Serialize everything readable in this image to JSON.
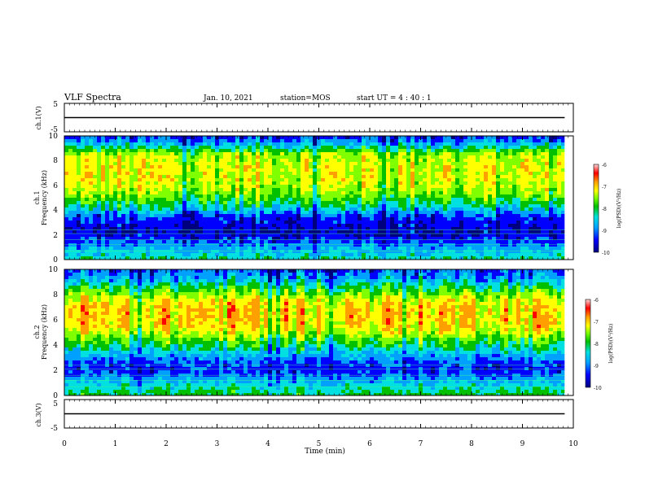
{
  "header": {
    "title": "VLF Spectra",
    "date": "Jan. 10, 2021",
    "station": "station=MOS",
    "start": "start  UT =  4 : 40 : 1"
  },
  "colorbar": {
    "ticks": [
      "-6",
      "-7",
      "-8",
      "-9",
      "-10"
    ],
    "label": "log(PSD)(V²/Hz)"
  },
  "chart_data": [
    {
      "type": "line",
      "ylabel": "ch.1(V)",
      "ylim": [
        -5,
        5
      ],
      "yticks": [
        "5",
        "-5"
      ],
      "x": [
        0,
        9.83
      ],
      "values": [
        0,
        0
      ],
      "xlim": [
        0,
        10
      ]
    },
    {
      "type": "heatmap",
      "ylabel": "ch.1\nFrequency (kHz)",
      "ylim": [
        0,
        10
      ],
      "xlim": [
        0,
        10
      ],
      "yticks": [
        "0",
        "2",
        "4",
        "6",
        "8",
        "10"
      ],
      "data_end_min": 9.83,
      "color_scale": [
        "#00007f",
        "#0000ff",
        "#00a0ff",
        "#00e0e0",
        "#00c000",
        "#80ff00",
        "#ffff00",
        "#ffa000",
        "#ff0000"
      ],
      "zlim": [
        -10,
        -6
      ],
      "profile": {
        "freq_khz": [
          0,
          0.5,
          1.0,
          1.5,
          2.0,
          2.5,
          3.0,
          3.5,
          4.0,
          4.5,
          5.0,
          5.5,
          6.0,
          6.5,
          7.0,
          7.5,
          8.0,
          8.5,
          9.0,
          9.5,
          10.0
        ],
        "log_psd": [
          -8.2,
          -8.6,
          -8.8,
          -9.2,
          -9.5,
          -9.5,
          -9.4,
          -9.2,
          -8.6,
          -8.2,
          -7.8,
          -7.5,
          -7.3,
          -7.2,
          -7.2,
          -7.2,
          -7.3,
          -7.4,
          -8.2,
          -8.9,
          -9.3
        ]
      }
    },
    {
      "type": "heatmap",
      "ylabel": "ch.2\nFrequency (kHz)",
      "ylim": [
        0,
        10
      ],
      "xlim": [
        0,
        10
      ],
      "yticks": [
        "0",
        "2",
        "4",
        "6",
        "8",
        "10"
      ],
      "data_end_min": 9.83,
      "color_scale": [
        "#00007f",
        "#0000ff",
        "#00a0ff",
        "#00e0e0",
        "#00c000",
        "#80ff00",
        "#ffff00",
        "#ffa000",
        "#ff0000"
      ],
      "zlim": [
        -10,
        -6
      ],
      "profile": {
        "freq_khz": [
          0,
          0.5,
          1.0,
          1.5,
          2.0,
          2.5,
          3.0,
          3.5,
          4.0,
          4.5,
          5.0,
          5.5,
          6.0,
          6.5,
          7.0,
          7.5,
          8.0,
          8.5,
          9.0,
          9.5,
          10.0
        ],
        "log_psd": [
          -8.0,
          -8.3,
          -8.6,
          -9.0,
          -9.3,
          -9.2,
          -8.9,
          -8.5,
          -8.1,
          -7.7,
          -7.3,
          -7.0,
          -6.9,
          -6.9,
          -6.9,
          -7.1,
          -7.5,
          -8.0,
          -8.5,
          -8.9,
          -9.2
        ]
      }
    },
    {
      "type": "line",
      "ylabel": "ch.3(V)",
      "ylim": [
        -5,
        5
      ],
      "yticks": [
        "5",
        "-5"
      ],
      "x": [
        0,
        9.83
      ],
      "values": [
        0,
        0
      ],
      "xlim": [
        0,
        10
      ]
    }
  ],
  "xaxis": {
    "label": "Time (min)",
    "ticks": [
      "0",
      "1",
      "2",
      "3",
      "4",
      "5",
      "6",
      "7",
      "8",
      "9",
      "10"
    ]
  }
}
